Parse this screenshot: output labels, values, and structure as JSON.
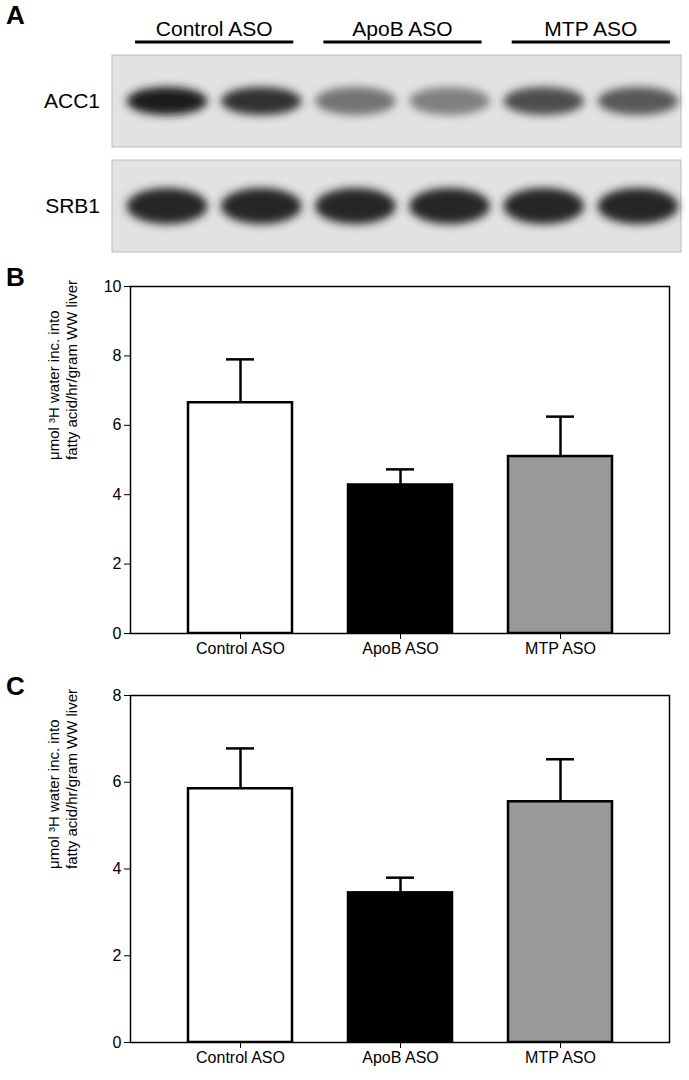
{
  "blot": {
    "title": "A",
    "groups": [
      "Control ASO",
      "ApoB ASO",
      "MTP ASO"
    ],
    "rows": [
      "ACC1",
      "SRB1"
    ]
  },
  "chart_data": [
    {
      "type": "bar",
      "title": "B",
      "categories": [
        "Control ASO",
        "ApoB ASO",
        "MTP ASO"
      ],
      "values": [
        6.65,
        4.28,
        5.1
      ],
      "errors": [
        1.25,
        0.45,
        1.15
      ],
      "colors": [
        "#ffffff",
        "#000000",
        "#999999"
      ],
      "ylabel": "μmol ³H water inc. into\nfatty acid/hr/gram WW liver",
      "ylim": [
        0,
        10
      ],
      "yticks": [
        0,
        2,
        4,
        6,
        8,
        10
      ]
    },
    {
      "type": "bar",
      "title": "C",
      "categories": [
        "Control ASO",
        "ApoB ASO",
        "MTP ASO"
      ],
      "values": [
        5.85,
        3.45,
        5.55
      ],
      "errors": [
        0.93,
        0.35,
        0.98
      ],
      "colors": [
        "#ffffff",
        "#000000",
        "#999999"
      ],
      "ylabel": "μmol ³H water inc. into\nfatty acid/hr/gram WW liver",
      "ylim": [
        0,
        8
      ],
      "yticks": [
        0,
        2,
        4,
        6,
        8
      ]
    }
  ]
}
